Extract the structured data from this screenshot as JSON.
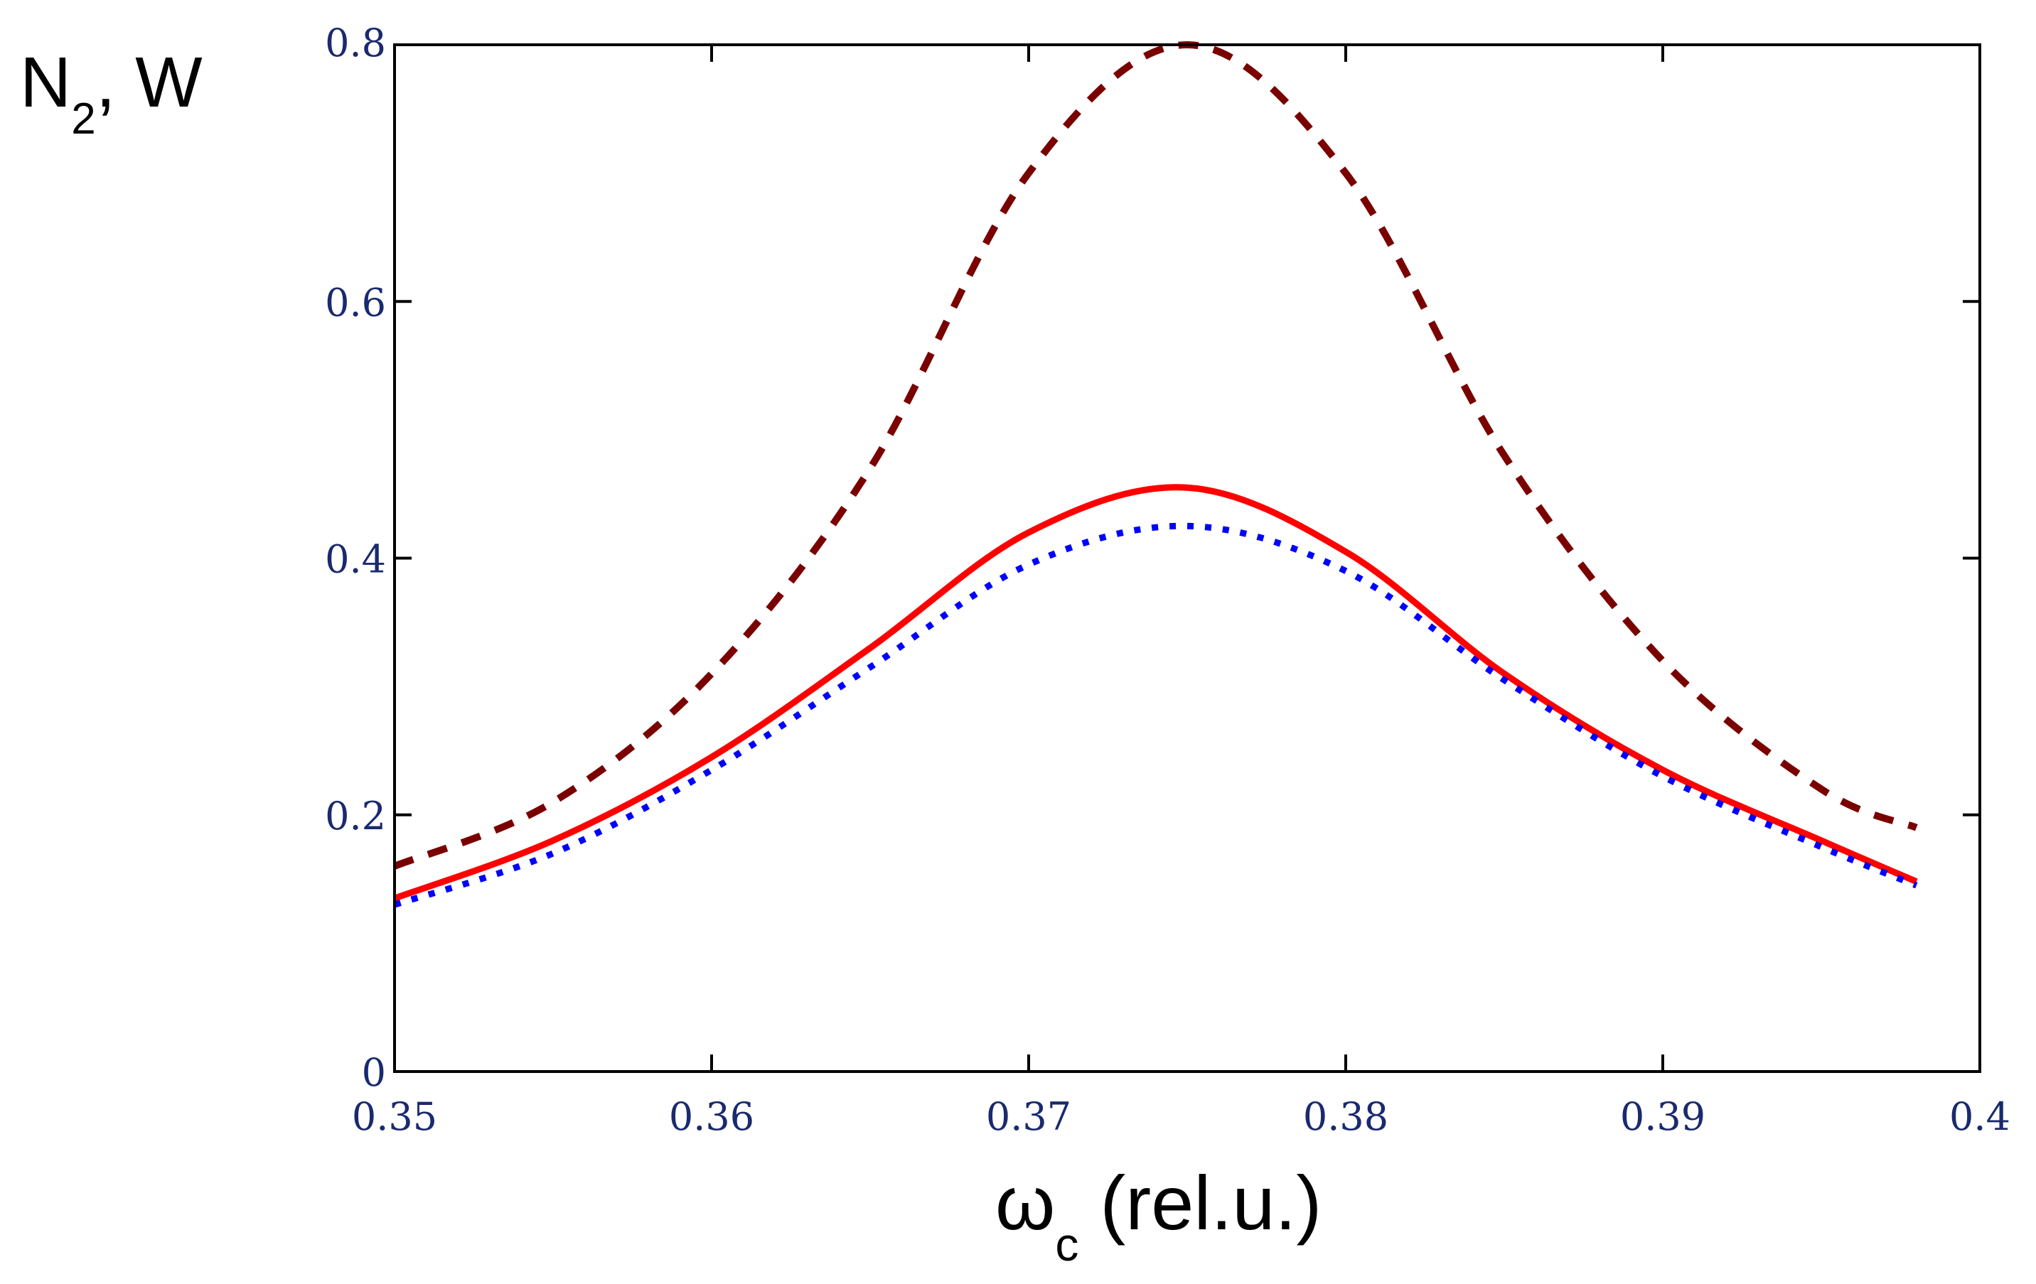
{
  "chart_data": {
    "type": "line",
    "title": "",
    "ylabel": {
      "main": "N",
      "sub": "2",
      "rest": ", W"
    },
    "xlabel": {
      "main": "ω",
      "sub": "c",
      "rest": " (rel.u.)"
    },
    "xlim": [
      0.35,
      0.4
    ],
    "ylim": [
      0,
      0.8
    ],
    "xticks": [
      "0.35",
      "0.36",
      "0.37",
      "0.38",
      "0.39",
      "0.4"
    ],
    "yticks": [
      "0",
      "0.2",
      "0.4",
      "0.6",
      "0.8"
    ],
    "grid": false,
    "legend": "none",
    "series": [
      {
        "style": "dashed",
        "color": "#7a0000",
        "x": [
          0.35,
          0.355,
          0.36,
          0.365,
          0.37,
          0.375,
          0.38,
          0.385,
          0.39,
          0.395,
          0.398
        ],
        "values": [
          0.16,
          0.21,
          0.31,
          0.47,
          0.7,
          0.8,
          0.7,
          0.48,
          0.32,
          0.22,
          0.19
        ]
      },
      {
        "style": "solid",
        "color": "#ff0000",
        "x": [
          0.35,
          0.355,
          0.36,
          0.365,
          0.37,
          0.375,
          0.38,
          0.385,
          0.39,
          0.395,
          0.398
        ],
        "values": [
          0.135,
          0.18,
          0.245,
          0.33,
          0.42,
          0.455,
          0.405,
          0.31,
          0.235,
          0.18,
          0.148
        ]
      },
      {
        "style": "dotted",
        "color": "#0000ff",
        "x": [
          0.35,
          0.355,
          0.36,
          0.365,
          0.37,
          0.375,
          0.38,
          0.385,
          0.39,
          0.395,
          0.398
        ],
        "values": [
          0.13,
          0.17,
          0.235,
          0.315,
          0.395,
          0.425,
          0.39,
          0.305,
          0.23,
          0.175,
          0.145
        ]
      }
    ]
  }
}
